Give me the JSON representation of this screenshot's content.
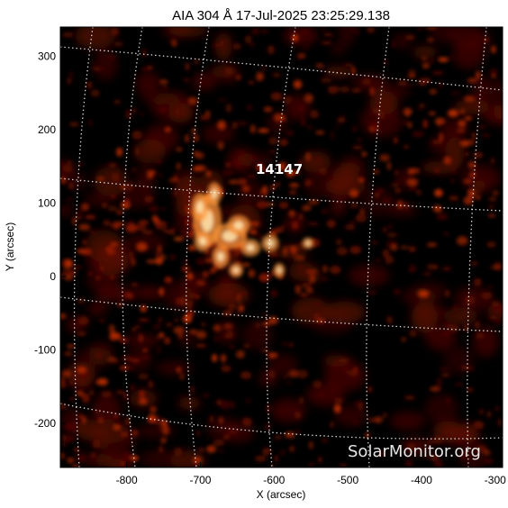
{
  "title": "AIA 304 Å 17-Jul-2025 23:25:29.138",
  "xlabel": "X (arcsec)",
  "ylabel": "Y (arcsec)",
  "x_ticks": [
    "-800",
    "-700",
    "-600",
    "-500",
    "-400",
    "-300"
  ],
  "y_ticks": [
    "300",
    "200",
    "100",
    "0",
    "-100",
    "-200"
  ],
  "region_label": "14147",
  "watermark": "SolarMonitor.org",
  "colors": {
    "background": "#000000",
    "emission_dim": "#5a0a00",
    "emission_mid": "#b52a00",
    "emission_bright": "#ff9a3c",
    "emission_core": "#ffe6b0",
    "grid": "#ffffff"
  },
  "chart_data": {
    "type": "image",
    "x_range": [
      -890,
      -290
    ],
    "y_range": [
      -260,
      340
    ]
  }
}
